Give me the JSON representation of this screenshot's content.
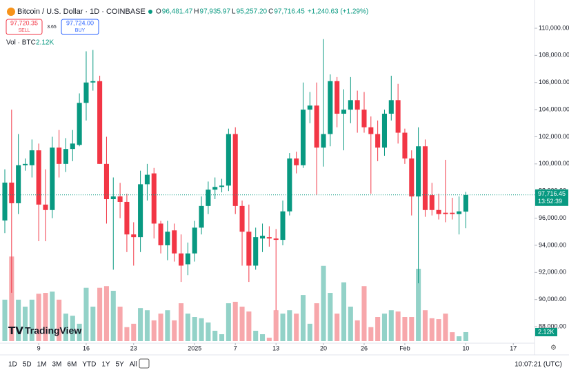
{
  "header": {
    "title": "Bitcoin / U.S. Dollar · 1D · COINBASE",
    "ohlc": [
      {
        "key": "O",
        "text": "96,481.47"
      },
      {
        "key": "H",
        "text": "97,935.97"
      },
      {
        "key": "L",
        "text": "95,257.20"
      },
      {
        "key": "C",
        "text": "97,716.45"
      }
    ],
    "change": "+1,240.63 (+1.29%)",
    "sell": {
      "price": "97,720.35",
      "label": "SELL"
    },
    "spread": "3.65",
    "buy": {
      "price": "97,724.00",
      "label": "BUY"
    },
    "volume_title": "Vol · BTC",
    "volume_text": "2.12K"
  },
  "toolbar": {
    "ranges": [
      "1D",
      "5D",
      "1M",
      "3M",
      "6M",
      "YTD",
      "1Y",
      "5Y",
      "All"
    ],
    "clock": "10:07:21 (UTC)"
  },
  "watermark": "TradingView",
  "chart_data": {
    "type": "candlestick",
    "colors": {
      "up": "#089981",
      "down": "#f23645",
      "up_volume": "#93d2c8",
      "down_volume": "#f7a7ab"
    },
    "open": [
      95830,
      98620,
      97100,
      99900,
      99900,
      101000,
      97000,
      96600,
      101200,
      100000,
      101100,
      101400,
      104500,
      106000,
      106100,
      100000,
      97400,
      97600,
      97200,
      94800,
      94600,
      98500,
      99300,
      95600,
      94000,
      95100,
      93400,
      92600,
      93400,
      95300,
      96900,
      98100,
      98300,
      98400,
      102200,
      96900,
      95000,
      92500,
      94500,
      94600,
      94500,
      94400,
      96500,
      100400,
      99900,
      104000,
      104300,
      101200,
      102200,
      106100,
      103700,
      104000,
      104700,
      104000,
      102700,
      102200,
      101200,
      103700,
      104700,
      102300,
      100400,
      97600,
      101300,
      97700,
      96600,
      96400,
      96400,
      96300,
      96481.47
    ],
    "high": [
      99600,
      104000,
      102200,
      100400,
      101800,
      101500,
      99600,
      102000,
      102500,
      101900,
      102500,
      105200,
      108300,
      108400,
      106500,
      102000,
      99000,
      98600,
      97800,
      95700,
      99500,
      100000,
      99700,
      95800,
      95800,
      95600,
      94800,
      94200,
      95800,
      97600,
      98700,
      99000,
      98900,
      102600,
      102700,
      97300,
      97000,
      95300,
      95600,
      95400,
      95200,
      97300,
      100800,
      100900,
      106000,
      105300,
      106000,
      109200,
      106600,
      106400,
      105500,
      106400,
      105400,
      105300,
      103500,
      103200,
      104000,
      106500,
      105900,
      102600,
      101000,
      102700,
      101800,
      98600,
      97800,
      100300,
      97500,
      97600,
      97935.97
    ],
    "low": [
      94900,
      90500,
      96300,
      99500,
      99000,
      94300,
      94300,
      96000,
      99000,
      99400,
      100200,
      101300,
      103200,
      105400,
      100000,
      95600,
      92200,
      96000,
      93500,
      92500,
      93500,
      97300,
      94500,
      93400,
      92900,
      92800,
      91300,
      91800,
      92800,
      94800,
      96300,
      97400,
      97900,
      98000,
      96300,
      92500,
      91300,
      92200,
      93500,
      93900,
      89200,
      94000,
      96200,
      99300,
      99700,
      103000,
      97700,
      99800,
      101300,
      102700,
      101000,
      103000,
      102300,
      102300,
      97800,
      100200,
      100600,
      103200,
      101500,
      100000,
      96200,
      91200,
      96100,
      96200,
      95900,
      95700,
      95900,
      94800,
      95257.2
    ],
    "close": [
      98620,
      97100,
      99900,
      100000,
      101000,
      97000,
      96600,
      101200,
      100000,
      101100,
      101500,
      104500,
      106000,
      106100,
      100000,
      97400,
      97600,
      97200,
      94800,
      94600,
      98500,
      99200,
      95600,
      94000,
      95000,
      93400,
      92500,
      93400,
      95300,
      96900,
      98100,
      98300,
      98400,
      102200,
      96900,
      95000,
      92500,
      94600,
      94700,
      94500,
      94400,
      96500,
      100400,
      99900,
      104000,
      104300,
      101200,
      102200,
      106100,
      103700,
      104000,
      104700,
      104000,
      102700,
      102200,
      101200,
      103700,
      104700,
      102300,
      100400,
      97600,
      101300,
      96600,
      96600,
      96300,
      96300,
      96300,
      96500,
      97716.45
    ],
    "volume": [
      9800,
      20000,
      9800,
      8150,
      9800,
      11200,
      11400,
      11700,
      9800,
      6500,
      6000,
      4100,
      12600,
      8150,
      12600,
      13000,
      11900,
      8150,
      3300,
      4100,
      7800,
      7300,
      4900,
      6500,
      7300,
      4900,
      8950,
      6500,
      5700,
      5400,
      4400,
      2450,
      1630,
      8950,
      9300,
      8150,
      7000,
      2450,
      1630,
      800,
      7300,
      6500,
      7300,
      6500,
      10900,
      4100,
      8950,
      17800,
      11400,
      6500,
      13900,
      8150,
      4900,
      13000,
      3300,
      5700,
      6500,
      7300,
      7000,
      5700,
      5700,
      17100,
      7300,
      5400,
      5200,
      6500,
      2100,
      1140,
      2120
    ],
    "volume_lim": [
      0,
      22000
    ],
    "volume_label": {
      "value": 2120,
      "label": "2.12K"
    },
    "last_price": {
      "value": 97716.45,
      "label": "97,716.45"
    },
    "countdown": "13:52:39",
    "xlim": [
      -0.712,
      78.13
    ],
    "xticks": [
      {
        "value": 5,
        "label": "9"
      },
      {
        "value": 12,
        "label": "16"
      },
      {
        "value": 19,
        "label": "23"
      },
      {
        "value": 28,
        "label": "2025"
      },
      {
        "value": 34,
        "label": "7"
      },
      {
        "value": 40,
        "label": "13"
      },
      {
        "value": 47,
        "label": "20"
      },
      {
        "value": 53,
        "label": "26"
      },
      {
        "value": 59,
        "label": "Feb"
      },
      {
        "value": 68,
        "label": "10"
      },
      {
        "value": 75,
        "label": "17"
      }
    ],
    "ylim": [
      86784,
      111676
    ],
    "yticks": [
      {
        "value": 88000,
        "label": "88,000.00"
      },
      {
        "value": 90000,
        "label": "90,000.00"
      },
      {
        "value": 92000,
        "label": "92,000.00"
      },
      {
        "value": 94000,
        "label": "94,000.00"
      },
      {
        "value": 96000,
        "label": "96,000.00"
      },
      {
        "value": 98000,
        "label": "98,000.00"
      },
      {
        "value": 100000,
        "label": "100,000.00"
      },
      {
        "value": 102000,
        "label": "102,000.00"
      },
      {
        "value": 104000,
        "label": "104,000.00"
      },
      {
        "value": 106000,
        "label": "106,000.00"
      },
      {
        "value": 108000,
        "label": "108,000.00"
      },
      {
        "value": 110000,
        "label": "110,000.00"
      }
    ],
    "grid": false
  }
}
